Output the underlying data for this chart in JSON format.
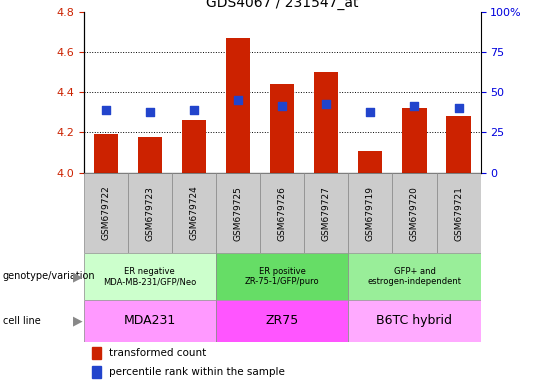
{
  "title": "GDS4067 / 231547_at",
  "samples": [
    "GSM679722",
    "GSM679723",
    "GSM679724",
    "GSM679725",
    "GSM679726",
    "GSM679727",
    "GSM679719",
    "GSM679720",
    "GSM679721"
  ],
  "red_values": [
    4.19,
    4.18,
    4.26,
    4.67,
    4.44,
    4.5,
    4.11,
    4.32,
    4.28
  ],
  "blue_values": [
    4.31,
    4.3,
    4.31,
    4.36,
    4.33,
    4.34,
    4.3,
    4.33,
    4.32
  ],
  "ylim_left": [
    4.0,
    4.8
  ],
  "ylim_right": [
    0,
    100
  ],
  "yticks_left": [
    4.0,
    4.2,
    4.4,
    4.6,
    4.8
  ],
  "yticks_right": [
    0,
    25,
    50,
    75,
    100
  ],
  "ytick_labels_right": [
    "0",
    "25",
    "50",
    "75",
    "100%"
  ],
  "groups": [
    {
      "label": "ER negative\nMDA-MB-231/GFP/Neo",
      "cell_line": "MDA231",
      "start": 0,
      "end": 3,
      "geno_color": "#ccffcc",
      "cell_color": "#ff99ff"
    },
    {
      "label": "ER positive\nZR-75-1/GFP/puro",
      "cell_line": "ZR75",
      "start": 3,
      "end": 6,
      "geno_color": "#66dd66",
      "cell_color": "#ff55ff"
    },
    {
      "label": "GFP+ and\nestrogen-independent",
      "cell_line": "B6TC hybrid",
      "start": 6,
      "end": 9,
      "geno_color": "#99ee99",
      "cell_color": "#ffaaff"
    }
  ],
  "legend_red": "transformed count",
  "legend_blue": "percentile rank within the sample",
  "bar_color": "#cc2200",
  "dot_color": "#2244cc",
  "bar_width": 0.55,
  "dot_size": 30,
  "left_axis_color": "#cc2200",
  "right_axis_color": "#0000dd",
  "xtick_bg": "#cccccc",
  "grid_lines": [
    4.2,
    4.4,
    4.6
  ]
}
